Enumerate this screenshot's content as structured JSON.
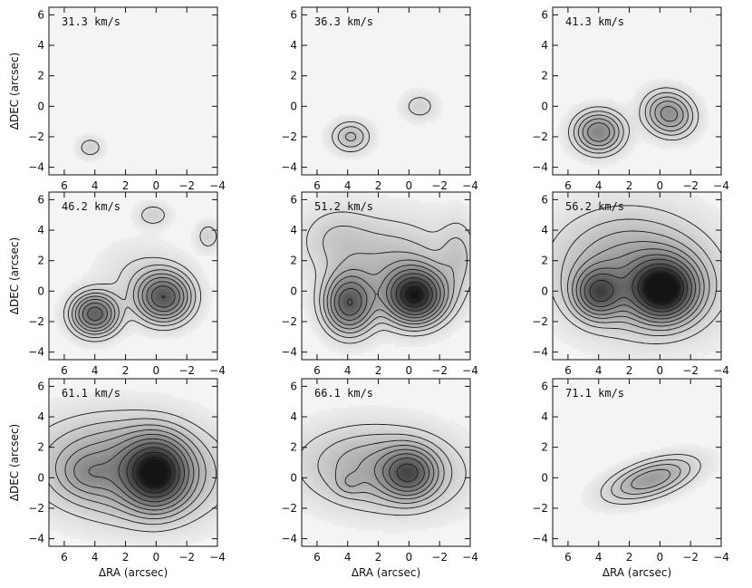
{
  "chart_data": {
    "type": "contour",
    "xlabel": "ΔRA (arcsec)",
    "ylabel": "ΔDEC (arcsec)",
    "xlim": [
      7,
      -4
    ],
    "ylim": [
      -4.5,
      6.5
    ],
    "xticks": [
      6,
      4,
      2,
      0,
      -2,
      -4
    ],
    "yticks": [
      -4,
      -2,
      0,
      2,
      4,
      6
    ],
    "xtick_labels": [
      "6",
      "4",
      "2",
      "0",
      "−2",
      "−4"
    ],
    "ytick_labels": [
      "−4",
      "−2",
      "0",
      "2",
      "4",
      "6"
    ],
    "panels": [
      {
        "label": "31.3 km/s",
        "sources": [
          {
            "x": 4.3,
            "y": -2.7,
            "sx": 0.55,
            "sy": 0.45,
            "rho": 0,
            "amp": 1.2
          }
        ]
      },
      {
        "label": "36.3 km/s",
        "sources": [
          {
            "x": 3.8,
            "y": -2.0,
            "sx": 0.8,
            "sy": 0.65,
            "rho": 0,
            "amp": 2.2
          },
          {
            "x": -0.7,
            "y": 0.0,
            "sx": 0.75,
            "sy": 0.6,
            "rho": 0,
            "amp": 1.1
          }
        ]
      },
      {
        "label": "41.3 km/s",
        "sources": [
          {
            "x": 4.0,
            "y": -1.7,
            "sx": 1.0,
            "sy": 0.85,
            "rho": 0,
            "amp": 4.8
          },
          {
            "x": -0.6,
            "y": -0.5,
            "sx": 1.0,
            "sy": 0.9,
            "rho": 0.1,
            "amp": 4.3
          }
        ]
      },
      {
        "label": "46.2 km/s",
        "sources": [
          {
            "x": 4.0,
            "y": -1.5,
            "sx": 0.95,
            "sy": 0.85,
            "rho": 0,
            "amp": 6.8
          },
          {
            "x": -0.5,
            "y": -0.4,
            "sx": 1.1,
            "sy": 1.0,
            "rho": 0,
            "amp": 7.2
          },
          {
            "x": 1.0,
            "y": 1.0,
            "sx": 1.8,
            "sy": 1.4,
            "rho": 0,
            "amp": 0.8
          },
          {
            "x": -3.4,
            "y": 3.6,
            "sx": 0.5,
            "sy": 0.6,
            "rho": 0,
            "amp": 1.2
          },
          {
            "x": 0.2,
            "y": 5.0,
            "sx": 0.7,
            "sy": 0.5,
            "rho": 0,
            "amp": 1.2
          }
        ]
      },
      {
        "label": "51.2 km/s",
        "sources": [
          {
            "x": 3.9,
            "y": -0.8,
            "sx": 1.0,
            "sy": 1.2,
            "rho": 0,
            "amp": 7.0
          },
          {
            "x": -0.4,
            "y": -0.3,
            "sx": 1.2,
            "sy": 1.1,
            "rho": 0,
            "amp": 10.5
          },
          {
            "x": 1.2,
            "y": 1.6,
            "sx": 2.6,
            "sy": 2.0,
            "rho": 0,
            "amp": 2.0
          },
          {
            "x": 4.8,
            "y": 3.5,
            "sx": 1.6,
            "sy": 1.4,
            "rho": 0,
            "amp": 1.1
          },
          {
            "x": -3.2,
            "y": 2.3,
            "sx": 0.8,
            "sy": 1.6,
            "rho": 0,
            "amp": 1.3
          }
        ]
      },
      {
        "label": "56.2 km/s",
        "sources": [
          {
            "x": 4.0,
            "y": -0.1,
            "sx": 1.0,
            "sy": 1.0,
            "rho": 0,
            "amp": 6.5
          },
          {
            "x": -0.2,
            "y": 0.1,
            "sx": 1.3,
            "sy": 1.2,
            "rho": 0,
            "amp": 11.5
          },
          {
            "x": 1.5,
            "y": 1.2,
            "sx": 3.2,
            "sy": 2.4,
            "rho": 0.1,
            "amp": 3.8
          }
        ]
      },
      {
        "label": "61.1 km/s",
        "sources": [
          {
            "x": 0.0,
            "y": 0.3,
            "sx": 1.3,
            "sy": 1.4,
            "rho": 0,
            "amp": 9.5
          },
          {
            "x": 1.8,
            "y": 0.6,
            "sx": 3.6,
            "sy": 2.0,
            "rho": 0.1,
            "amp": 4.2
          },
          {
            "x": 4.5,
            "y": 0.3,
            "sx": 1.1,
            "sy": 0.9,
            "rho": 0,
            "amp": 1.6
          }
        ]
      },
      {
        "label": "66.1 km/s",
        "sources": [
          {
            "x": 0.0,
            "y": 0.3,
            "sx": 1.1,
            "sy": 1.0,
            "rho": 0,
            "amp": 6.0
          },
          {
            "x": 1.8,
            "y": 0.6,
            "sx": 3.2,
            "sy": 1.7,
            "rho": 0.1,
            "amp": 3.0
          },
          {
            "x": 3.9,
            "y": -0.4,
            "sx": 0.6,
            "sy": 0.5,
            "rho": 0,
            "amp": 1.0
          }
        ]
      },
      {
        "label": "71.1 km/s",
        "sources": [
          {
            "x": 0.6,
            "y": -0.1,
            "sx": 1.8,
            "sy": 0.9,
            "rho": -0.55,
            "amp": 3.6
          }
        ]
      }
    ],
    "contour_levels": [
      0.7,
      1.3,
      2.0,
      2.8,
      3.7,
      4.8,
      6.0,
      7.5,
      9.0,
      10.5
    ]
  }
}
